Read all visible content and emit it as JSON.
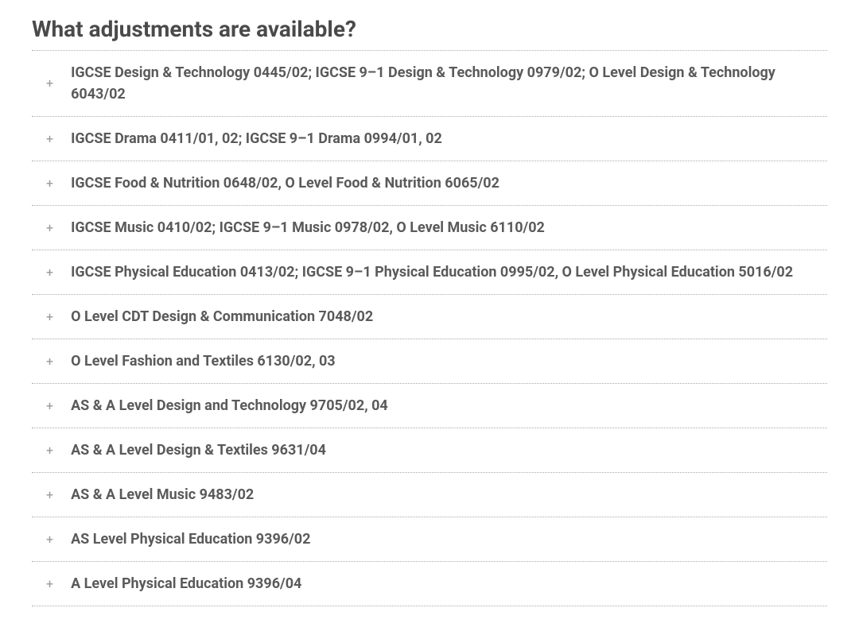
{
  "heading": "What adjustments are available?",
  "items": [
    {
      "label": "IGCSE Design & Technology 0445/02; IGCSE 9–1 Design & Technology 0979/02; O Level Design & Technology 6043/02"
    },
    {
      "label": "IGCSE Drama 0411/01, 02; IGCSE 9–1 Drama 0994/01, 02"
    },
    {
      "label": "IGCSE Food & Nutrition 0648/02, O Level Food & Nutrition 6065/02"
    },
    {
      "label": "IGCSE Music 0410/02; IGCSE 9–1 Music 0978/02, O Level Music 6110/02"
    },
    {
      "label": "IGCSE Physical Education 0413/02; IGCSE 9–1 Physical Education 0995/02, O Level Physical Education 5016/02"
    },
    {
      "label": "O Level CDT Design & Communication 7048/02"
    },
    {
      "label": "O Level Fashion and Textiles 6130/02, 03"
    },
    {
      "label": "AS & A Level Design and Technology 9705/02, 04"
    },
    {
      "label": "AS & A Level Design & Textiles 9631/04"
    },
    {
      "label": "AS & A Level Music 9483/02"
    },
    {
      "label": "AS Level Physical Education 9396/02"
    },
    {
      "label": "A Level Physical Education 9396/04"
    }
  ],
  "colors": {
    "heading_text": "#4a4a4a",
    "item_text": "#5a5a5a",
    "icon_color": "#999999",
    "border_color": "#aaaaaa",
    "background": "#ffffff"
  },
  "typography": {
    "heading_fontsize": 28,
    "heading_fontweight": 700,
    "item_fontsize": 18,
    "item_fontweight": 700
  }
}
